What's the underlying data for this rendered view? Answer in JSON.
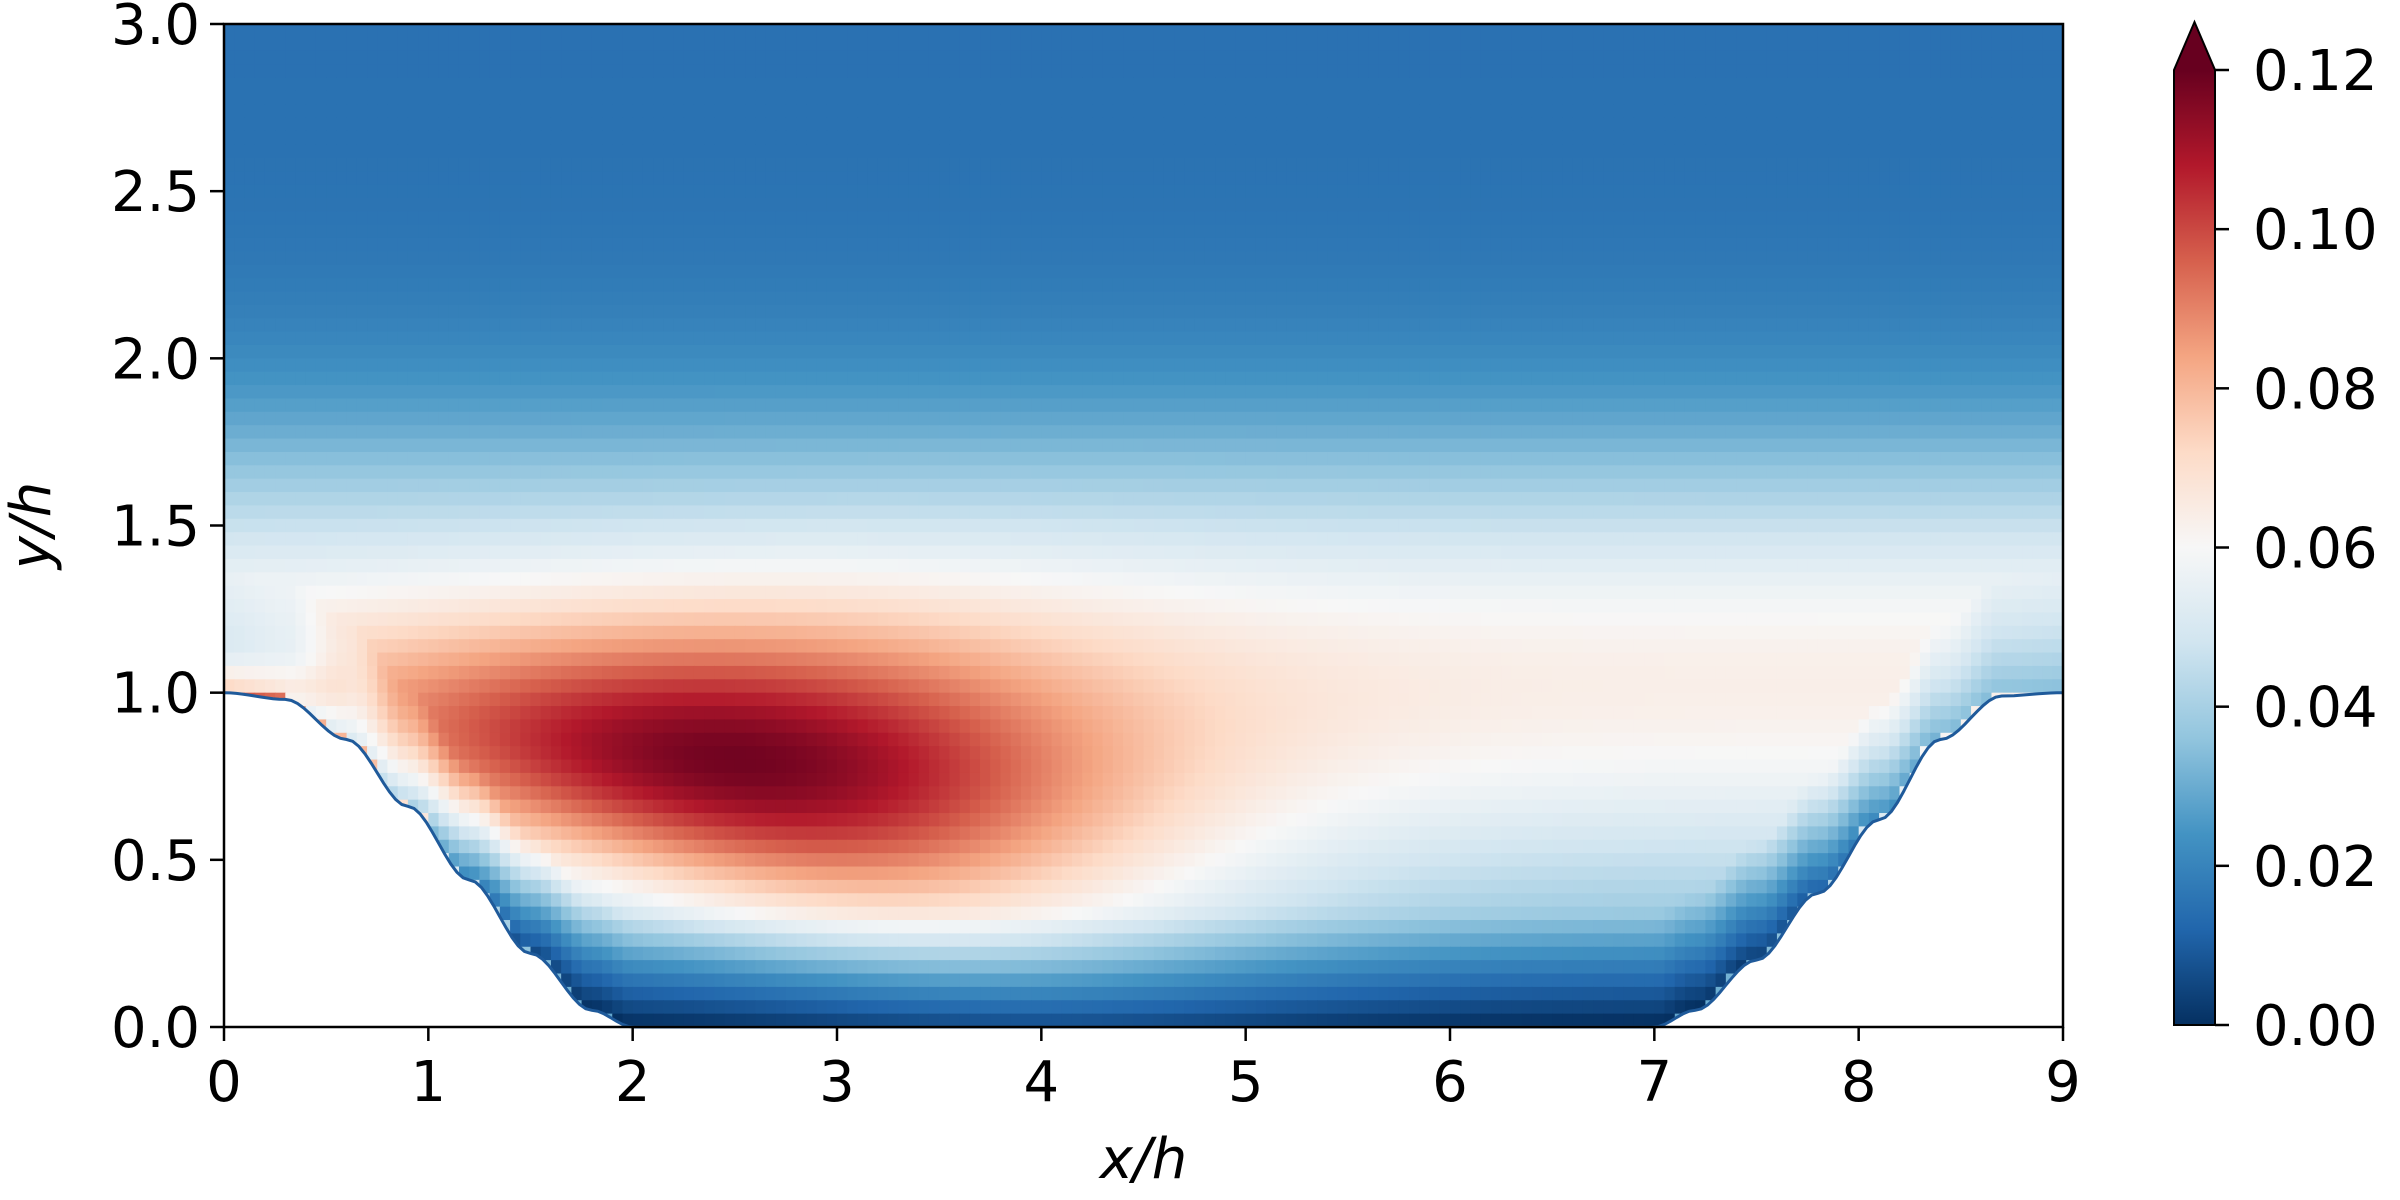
{
  "chart_data": {
    "type": "heatmap",
    "title": "",
    "xlabel": "x/h",
    "ylabel": "y/h",
    "xlim": [
      0,
      9
    ],
    "ylim": [
      0,
      3
    ],
    "xticks": [
      0,
      1,
      2,
      3,
      4,
      5,
      6,
      7,
      8,
      9
    ],
    "xtick_labels": [
      "0",
      "1",
      "2",
      "3",
      "4",
      "5",
      "6",
      "7",
      "8",
      "9"
    ],
    "yticks": [
      0.0,
      0.5,
      1.0,
      1.5,
      2.0,
      2.5,
      3.0
    ],
    "ytick_labels": [
      "0.0",
      "0.5",
      "1.0",
      "1.5",
      "2.0",
      "2.5",
      "3.0"
    ],
    "grid": false,
    "colormap": "RdBu_r",
    "colorbar": {
      "range": [
        0.0,
        0.12
      ],
      "ticks": [
        0.0,
        0.02,
        0.04,
        0.06,
        0.08,
        0.1,
        0.12
      ],
      "tick_labels": [
        "0.00",
        "0.02",
        "0.04",
        "0.06",
        "0.08",
        "0.10",
        "0.12"
      ],
      "extend": "max",
      "placement": "right"
    },
    "colormap_stops": [
      "#053061",
      "#2166ac",
      "#4393c3",
      "#92c5de",
      "#d1e5f0",
      "#f7f7f7",
      "#fddbc7",
      "#f4a582",
      "#d6604d",
      "#b2182b",
      "#67001f"
    ],
    "hill_profile": {
      "x": [
        0,
        0.3,
        0.6,
        0.9,
        1.2,
        1.5,
        1.8,
        2.0,
        7.0,
        7.2,
        7.5,
        7.8,
        8.1,
        8.4,
        8.7,
        9.0
      ],
      "y": [
        1.0,
        0.98,
        0.86,
        0.66,
        0.44,
        0.22,
        0.05,
        0.0,
        0.0,
        0.05,
        0.2,
        0.4,
        0.62,
        0.86,
        0.99,
        1.0
      ]
    },
    "field_note_values": {
      "max_region_center": [
        2.6,
        0.78
      ],
      "max_value": 0.11,
      "top_value": 0.015,
      "mid_value_y": 1.3
    }
  }
}
